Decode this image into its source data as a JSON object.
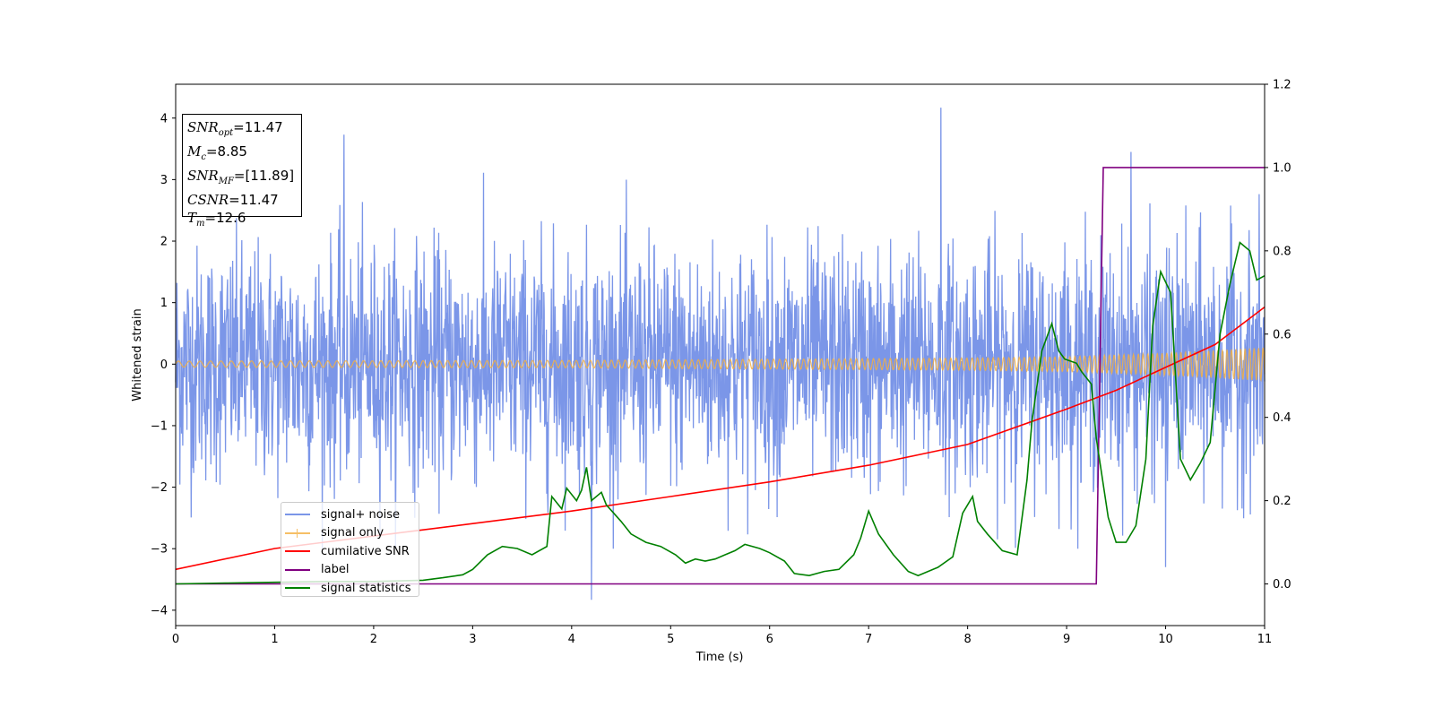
{
  "chart_data": {
    "type": "line",
    "xlabel": "Time (s)",
    "ylabel": "Whitened strain",
    "xlim": [
      0,
      11
    ],
    "ylim": [
      -4.25,
      4.55
    ],
    "y2lim": [
      -0.1,
      1.2
    ],
    "xticks": [
      "0",
      "1",
      "2",
      "3",
      "4",
      "5",
      "6",
      "7",
      "8",
      "9",
      "10",
      "11"
    ],
    "yticks": [
      "4",
      "3",
      "2",
      "1",
      "0",
      "−1",
      "−2",
      "−3",
      "−4"
    ],
    "y2ticks": [
      "0.0",
      "0.2",
      "0.4",
      "0.6",
      "0.8",
      "1.0",
      "1.2"
    ],
    "grid": false,
    "legend_position": "lower-left",
    "series": [
      {
        "name": "signal+ noise",
        "color": "#7b96e8",
        "axis": "left",
        "description_envelope": "noise, typical amplitude about ±2, spikes up to 4.2 and down to -3.8",
        "spikes": [
          [
            1.7,
            3.73
          ],
          [
            4.2,
            -3.83
          ],
          [
            7.73,
            4.17
          ],
          [
            9.65,
            3.45
          ],
          [
            10.0,
            -3.3
          ]
        ]
      },
      {
        "name": "signal only",
        "color": "#f5b041",
        "axis": "left",
        "amplitude": [
          [
            0,
            0.05
          ],
          [
            4,
            0.06
          ],
          [
            8,
            0.1
          ],
          [
            9,
            0.12
          ],
          [
            10,
            0.18
          ],
          [
            11,
            0.27
          ]
        ]
      },
      {
        "name": "cumilative SNR",
        "color": "#ff0000",
        "axis": "right",
        "x": [
          0,
          1,
          2,
          3,
          4,
          5,
          6,
          7,
          8,
          9,
          9.5,
          10,
          10.5,
          11
        ],
        "y": [
          0.035,
          0.085,
          0.115,
          0.145,
          0.175,
          0.21,
          0.245,
          0.285,
          0.335,
          0.42,
          0.465,
          0.52,
          0.575,
          0.665
        ]
      },
      {
        "name": "label",
        "color": "#800080",
        "axis": "right",
        "x": [
          0,
          9.3,
          9.37,
          11
        ],
        "y": [
          0.0,
          0.0,
          1.0,
          1.0
        ]
      },
      {
        "name": "signal statistics",
        "color": "#008000",
        "axis": "right",
        "x": [
          0,
          0.5,
          1.0,
          1.5,
          2.0,
          2.5,
          2.7,
          2.9,
          3.0,
          3.15,
          3.3,
          3.45,
          3.6,
          3.75,
          3.8,
          3.9,
          3.95,
          4.05,
          4.1,
          4.15,
          4.2,
          4.3,
          4.35,
          4.5,
          4.6,
          4.75,
          4.9,
          5.05,
          5.15,
          5.25,
          5.35,
          5.45,
          5.55,
          5.65,
          5.75,
          5.9,
          6.0,
          6.15,
          6.25,
          6.4,
          6.55,
          6.7,
          6.85,
          6.92,
          7.0,
          7.1,
          7.25,
          7.4,
          7.5,
          7.7,
          7.85,
          7.95,
          8.05,
          8.1,
          8.2,
          8.35,
          8.5,
          8.6,
          8.65,
          8.75,
          8.85,
          8.92,
          8.98,
          9.1,
          9.15,
          9.25,
          9.3,
          9.42,
          9.5,
          9.6,
          9.7,
          9.8,
          9.87,
          9.95,
          10.05,
          10.15,
          10.25,
          10.35,
          10.45,
          10.55,
          10.65,
          10.75,
          10.85,
          10.92,
          11.0
        ],
        "y": [
          0.0,
          0.002,
          0.004,
          0.006,
          0.006,
          0.009,
          0.015,
          0.022,
          0.035,
          0.07,
          0.09,
          0.085,
          0.07,
          0.09,
          0.21,
          0.18,
          0.23,
          0.2,
          0.225,
          0.28,
          0.2,
          0.22,
          0.19,
          0.15,
          0.12,
          0.1,
          0.09,
          0.07,
          0.05,
          0.06,
          0.055,
          0.06,
          0.07,
          0.08,
          0.095,
          0.085,
          0.075,
          0.055,
          0.025,
          0.02,
          0.03,
          0.035,
          0.07,
          0.11,
          0.175,
          0.12,
          0.07,
          0.03,
          0.02,
          0.04,
          0.065,
          0.17,
          0.21,
          0.15,
          0.12,
          0.08,
          0.07,
          0.25,
          0.39,
          0.56,
          0.625,
          0.56,
          0.54,
          0.53,
          0.51,
          0.48,
          0.35,
          0.16,
          0.1,
          0.1,
          0.14,
          0.3,
          0.62,
          0.75,
          0.7,
          0.3,
          0.25,
          0.29,
          0.34,
          0.6,
          0.72,
          0.82,
          0.8,
          0.73,
          0.74
        ]
      }
    ]
  },
  "info_box": [
    {
      "var": "SNR",
      "sub": "opt",
      "value": "=11.47"
    },
    {
      "var": "M",
      "sub": "c",
      "value": "=8.85"
    },
    {
      "var": "SNR",
      "sub": "MF",
      "value": "=[11.89]"
    },
    {
      "var": "CSNR",
      "sub": "",
      "value": "=11.47"
    },
    {
      "var": "T",
      "sub": "m",
      "value": "=12.6"
    }
  ]
}
